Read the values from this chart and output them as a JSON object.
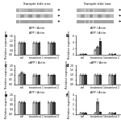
{
  "title_left": "Sample title one",
  "title_right": "Sample title two",
  "bar_charts": [
    {
      "panel": "a",
      "groups": 3,
      "group_labels": [
        "ctrl",
        "treatment 1",
        "treatment 2"
      ],
      "series_colors": [
        "#bbbbbb",
        "#777777",
        "#333333"
      ],
      "values": [
        [
          1.0,
          1.0,
          1.0
        ],
        [
          1.0,
          1.0,
          1.0
        ],
        [
          1.0,
          1.0,
          1.0
        ]
      ],
      "errors": [
        [
          0.05,
          0.07,
          0.06
        ],
        [
          0.06,
          0.07,
          0.05
        ],
        [
          0.05,
          0.06,
          0.06
        ]
      ],
      "ylim": [
        0,
        1.6
      ],
      "yticks": [
        0,
        0.4,
        0.8,
        1.2,
        1.6
      ],
      "ylabel": "Relative expression"
    },
    {
      "panel": "b",
      "groups": 3,
      "group_labels": [
        "ctrl",
        "treatment 1",
        "treatment 2"
      ],
      "series_colors": [
        "#bbbbbb",
        "#777777",
        "#333333"
      ],
      "values": [
        [
          0.15,
          1.5,
          0.2
        ],
        [
          0.2,
          2.5,
          0.25
        ],
        [
          0.18,
          4.2,
          0.22
        ]
      ],
      "errors": [
        [
          0.04,
          0.2,
          0.05
        ],
        [
          0.05,
          0.35,
          0.05
        ],
        [
          0.04,
          0.9,
          0.05
        ]
      ],
      "ylim": [
        0,
        6.0
      ],
      "yticks": [
        0,
        2,
        4,
        6
      ],
      "ylabel": "Relative expression"
    },
    {
      "panel": "c",
      "groups": 3,
      "group_labels": [
        "ctrl",
        "treatment 1",
        "treatment 2"
      ],
      "series_colors": [
        "#bbbbbb",
        "#777777",
        "#333333"
      ],
      "values": [
        [
          1.0,
          0.95,
          1.0
        ],
        [
          1.25,
          0.95,
          0.95
        ],
        [
          1.05,
          0.95,
          0.98
        ]
      ],
      "errors": [
        [
          0.07,
          0.09,
          0.07
        ],
        [
          0.1,
          0.09,
          0.08
        ],
        [
          0.08,
          0.08,
          0.07
        ]
      ],
      "ylim": [
        0,
        2.0
      ],
      "yticks": [
        0,
        0.5,
        1.0,
        1.5,
        2.0
      ],
      "ylabel": "Relative expression"
    },
    {
      "panel": "d",
      "groups": 3,
      "group_labels": [
        "ctrl",
        "treatment 1",
        "treatment 2"
      ],
      "series_colors": [
        "#bbbbbb",
        "#777777",
        "#333333"
      ],
      "values": [
        [
          1.0,
          1.0,
          1.0
        ],
        [
          1.0,
          1.0,
          1.0
        ],
        [
          1.0,
          1.0,
          1.0
        ]
      ],
      "errors": [
        [
          0.07,
          0.09,
          0.07
        ],
        [
          0.09,
          0.09,
          0.08
        ],
        [
          0.08,
          0.08,
          0.07
        ]
      ],
      "ylim": [
        0,
        2.0
      ],
      "yticks": [
        0,
        0.5,
        1.0,
        1.5,
        2.0
      ],
      "ylabel": "Relative expression"
    },
    {
      "panel": "e",
      "groups": 3,
      "group_labels": [
        "ctrl",
        "treatment 1",
        "treatment 2"
      ],
      "series_colors": [
        "#bbbbbb",
        "#777777",
        "#333333"
      ],
      "values": [
        [
          1.0,
          1.0,
          1.0
        ],
        [
          1.0,
          1.0,
          1.0
        ],
        [
          1.0,
          1.0,
          1.0
        ]
      ],
      "errors": [
        [
          0.05,
          0.07,
          0.06
        ],
        [
          0.06,
          0.07,
          0.05
        ],
        [
          0.05,
          0.06,
          0.06
        ]
      ],
      "ylim": [
        0,
        1.6
      ],
      "yticks": [
        0,
        0.4,
        0.8,
        1.2,
        1.6
      ],
      "ylabel": "Relative expression"
    },
    {
      "panel": "f",
      "groups": 3,
      "group_labels": [
        "ctrl",
        "treatment 1",
        "treatment 2"
      ],
      "series_colors": [
        "#bbbbbb",
        "#777777",
        "#333333"
      ],
      "values": [
        [
          0.25,
          0.25,
          0.25
        ],
        [
          0.25,
          2.6,
          0.25
        ],
        [
          0.25,
          0.4,
          0.25
        ]
      ],
      "errors": [
        [
          0.04,
          0.05,
          0.04
        ],
        [
          0.04,
          0.45,
          0.04
        ],
        [
          0.04,
          0.08,
          0.04
        ]
      ],
      "ylim": [
        0,
        4.0
      ],
      "yticks": [
        0,
        1,
        2,
        3,
        4
      ],
      "ylabel": "Relative expression"
    }
  ],
  "wb_subtitle_left": "APP / Actin",
  "wb_subtitle_right": "APP / Actin",
  "bar_subtitles": [
    "APP / Actin",
    "APP / Actin",
    "sAPP / Actin",
    "sAPP / Actin",
    "APP / Actin",
    "APP / Actin"
  ],
  "bg_color": "#ffffff",
  "bar_width": 0.18,
  "font_size": 3.0
}
